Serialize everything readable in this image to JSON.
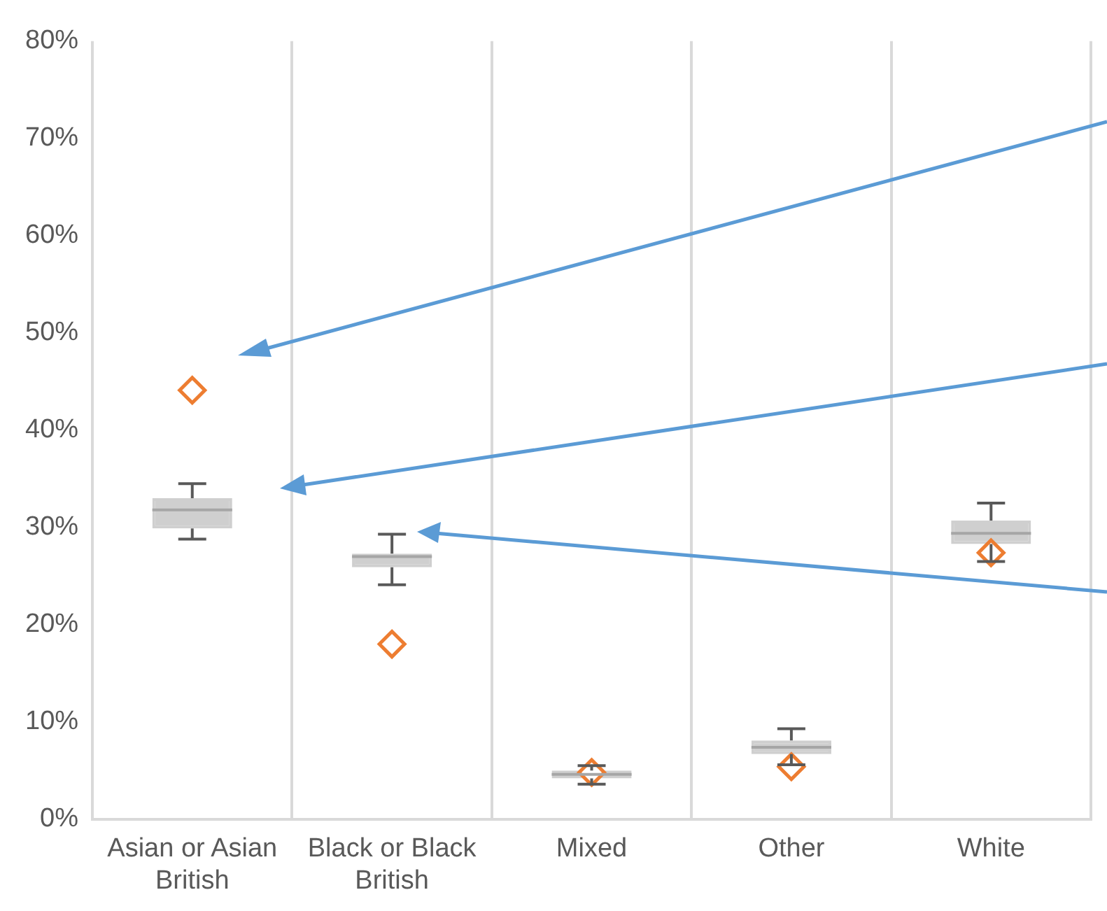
{
  "chart_data": {
    "type": "box",
    "categories": [
      "Asian or Asian British",
      "Black or Black British",
      "Mixed",
      "Other",
      "White"
    ],
    "color": "#cfcfcf",
    "boxes": [
      {
        "low": 28.8,
        "q1": 29.9,
        "median": 31.8,
        "q3": 33.0,
        "high": 34.5
      },
      {
        "low": 24.1,
        "q1": 25.9,
        "median": 27.0,
        "q3": 27.3,
        "high": 29.3
      },
      {
        "low": 3.6,
        "q1": 4.2,
        "median": 4.6,
        "q3": 5.0,
        "high": 5.5
      },
      {
        "low": 5.6,
        "q1": 6.7,
        "median": 7.4,
        "q3": 8.1,
        "high": 9.3
      },
      {
        "low": 26.5,
        "q1": 28.3,
        "median": 29.4,
        "q3": 30.7,
        "high": 32.5
      }
    ],
    "series": [
      {
        "type": "scatter",
        "color": "#ed7d31",
        "marker": "diamond",
        "x": [
          "Asian or Asian British",
          "Black or Black British",
          "Mixed",
          "Other",
          "White"
        ],
        "values": [
          44.1,
          18.0,
          4.8,
          5.4,
          27.4
        ]
      }
    ],
    "ylim": [
      0,
      80
    ],
    "yticks": [
      {
        "value": 0,
        "label": "0%"
      },
      {
        "value": 10,
        "label": "10%"
      },
      {
        "value": 20,
        "label": "20%"
      },
      {
        "value": 30,
        "label": "30%"
      },
      {
        "value": 40,
        "label": "40%"
      },
      {
        "value": 50,
        "label": "50%"
      },
      {
        "value": 60,
        "label": "60%"
      },
      {
        "value": 70,
        "label": "70%"
      },
      {
        "value": 80,
        "label": "80%"
      }
    ],
    "grid": "x",
    "legend": false
  }
}
